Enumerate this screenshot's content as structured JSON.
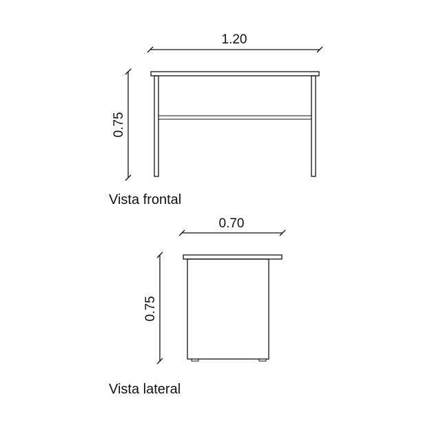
{
  "front_view": {
    "caption": "Vista frontal",
    "width_label": "1.20",
    "height_label": "0.75"
  },
  "side_view": {
    "caption": "Vista lateral",
    "width_label": "0.70",
    "height_label": "0.75"
  }
}
